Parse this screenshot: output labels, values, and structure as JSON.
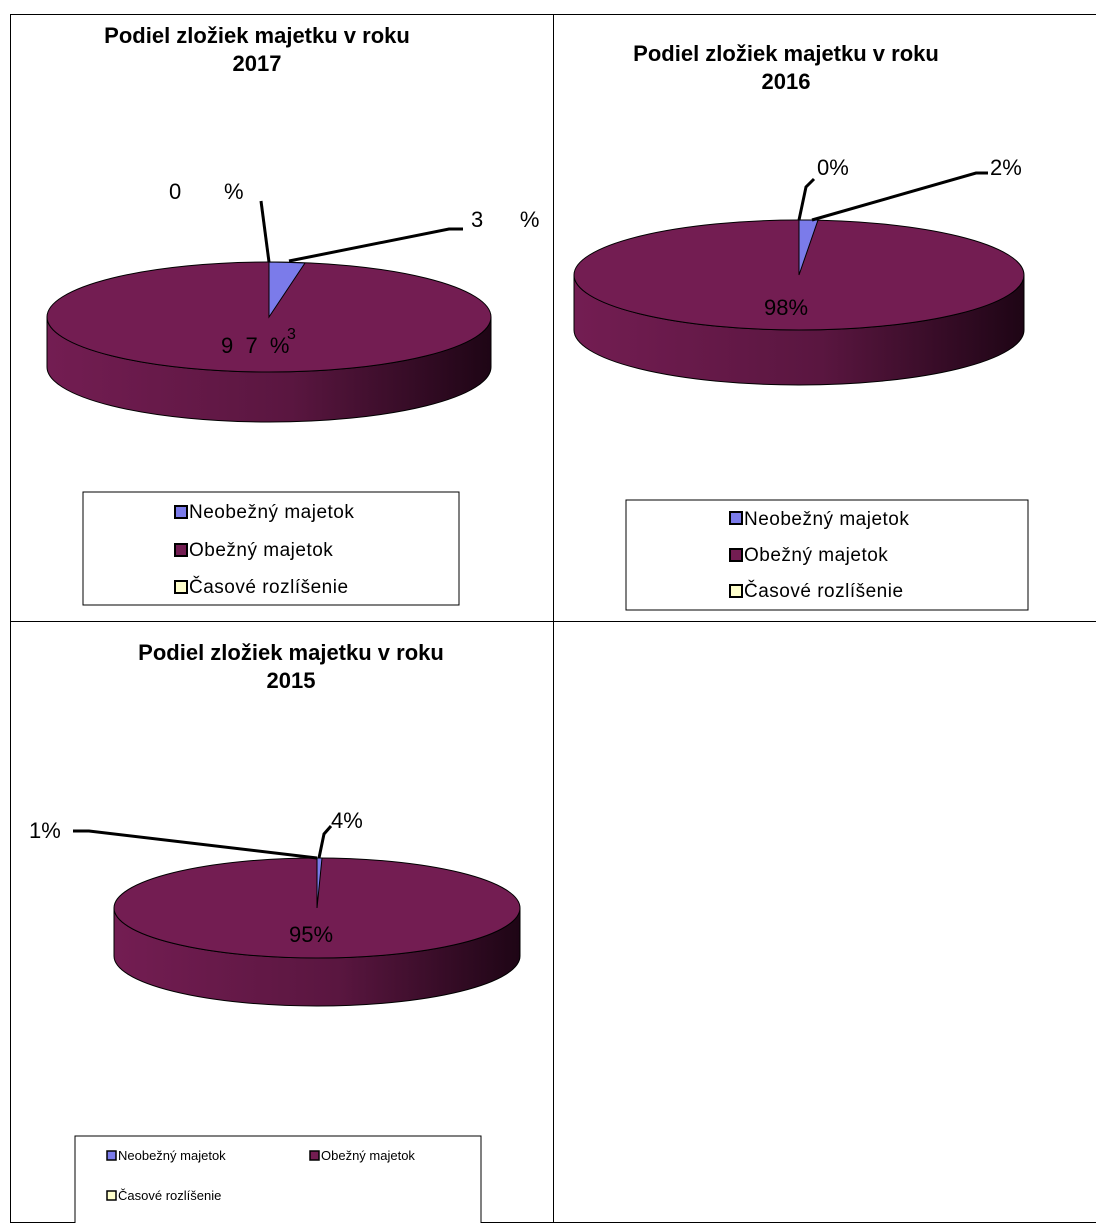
{
  "chart_data": [
    {
      "type": "pie",
      "title_line1": "Podiel  zložiek majetku  v roku",
      "title_line2": "2017",
      "categories": [
        "Neobežný majetok",
        "Obežný majetok",
        "Časové rozlíšenie"
      ],
      "values": [
        3,
        97,
        0
      ],
      "data_labels": [
        "3      %",
        "9  7  %",
        "0       %"
      ],
      "data_label_extra": "3",
      "colors": [
        "#7b7bea",
        "#731d52",
        "#ffffcc"
      ],
      "legend": "bottom"
    },
    {
      "type": "pie",
      "title_line1": "Podiel  zložiek majetku  v roku",
      "title_line2": "2016",
      "categories": [
        "Neobežný majetok",
        "Obežný majetok",
        "Časové rozlíšenie"
      ],
      "values": [
        2,
        98,
        0
      ],
      "data_labels": [
        "2%",
        "98%",
        "0%"
      ],
      "colors": [
        "#7b7bea",
        "#731d52",
        "#ffffcc"
      ],
      "legend": "bottom"
    },
    {
      "type": "pie",
      "title_line1": "Podiel  zložiek majetku  v roku",
      "title_line2": "2015",
      "categories": [
        "Neobežný majetok",
        "Obežný majetok",
        "Časové rozlíšenie"
      ],
      "values": [
        1,
        95,
        4
      ],
      "data_labels": [
        "1%",
        "95%",
        "4%"
      ],
      "colors": [
        "#7b7bea",
        "#731d52",
        "#ffffcc"
      ],
      "legend": "bottom"
    }
  ]
}
